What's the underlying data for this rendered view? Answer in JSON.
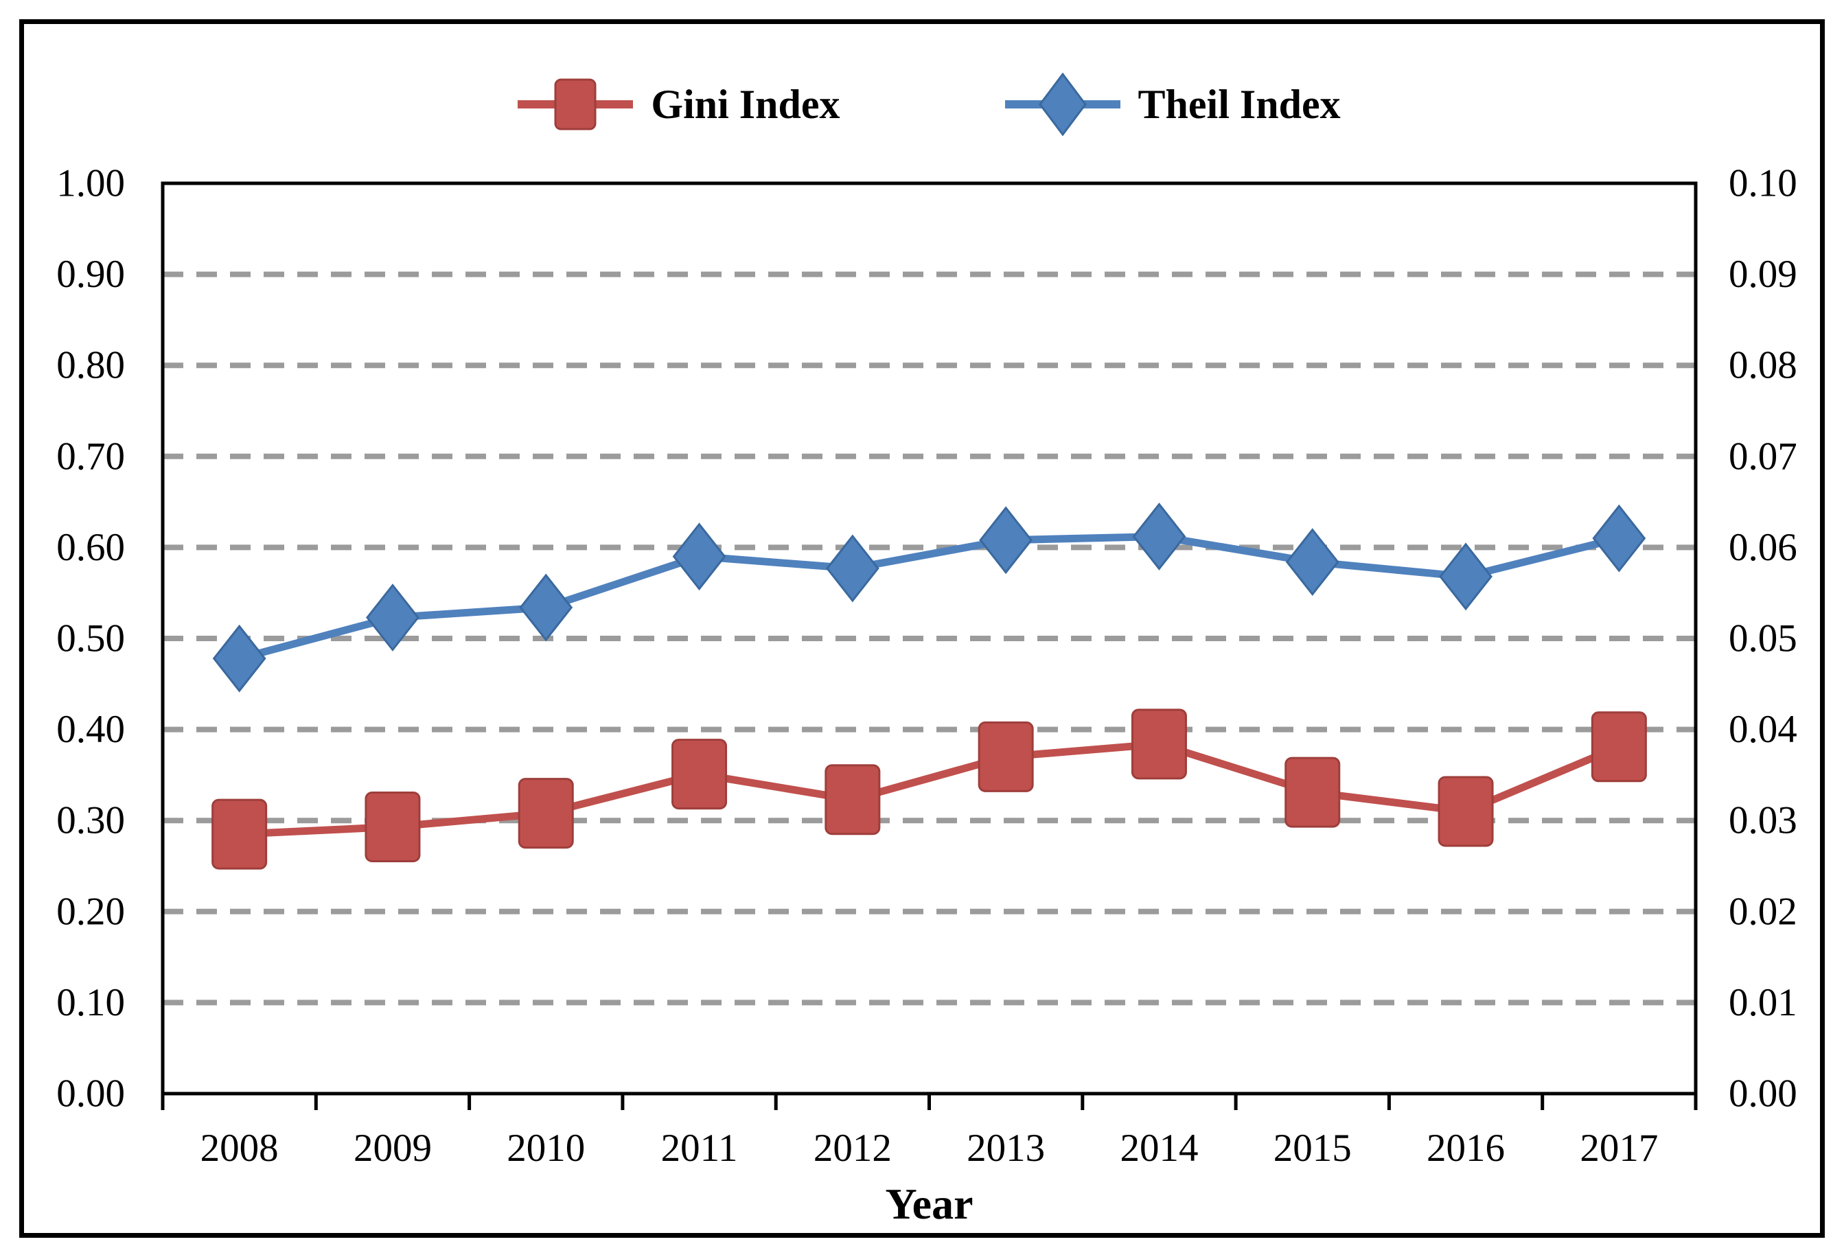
{
  "figure": {
    "background": "#ffffff",
    "border_color": "#000000"
  },
  "legend": {
    "position": "top-center",
    "items": [
      {
        "label": "Gini Index",
        "marker": "square",
        "color": "#C0504D",
        "marker_border": "#9E3E3B"
      },
      {
        "label": "Theil Index",
        "marker": "diamond",
        "color": "#4F81BD",
        "marker_border": "#3A699E"
      }
    ]
  },
  "chart_data": {
    "type": "line",
    "title": "",
    "xlabel": "Year",
    "categories": [
      "2008",
      "2009",
      "2010",
      "2011",
      "2012",
      "2013",
      "2014",
      "2015",
      "2016",
      "2017"
    ],
    "series": [
      {
        "name": "Gini Index",
        "axis": "left",
        "marker": "square",
        "color": "#C0504D",
        "marker_border": "#9E3E3B",
        "values": [
          0.285,
          0.293,
          0.308,
          0.351,
          0.323,
          0.37,
          0.384,
          0.331,
          0.31,
          0.381
        ]
      },
      {
        "name": "Theil Index",
        "axis": "right",
        "marker": "diamond",
        "color": "#4F81BD",
        "marker_border": "#3A699E",
        "values": [
          0.0478,
          0.0523,
          0.0534,
          0.059,
          0.0577,
          0.0608,
          0.0612,
          0.0584,
          0.0568,
          0.061
        ]
      }
    ],
    "left_axis": {
      "min": 0.0,
      "max": 1.0,
      "tick_step": 0.1,
      "ticks": [
        "0.00",
        "0.10",
        "0.20",
        "0.30",
        "0.40",
        "0.50",
        "0.60",
        "0.70",
        "0.80",
        "0.90",
        "1.00"
      ]
    },
    "right_axis": {
      "min": 0.0,
      "max": 0.1,
      "tick_step": 0.01,
      "ticks": [
        "0.00",
        "0.01",
        "0.02",
        "0.03",
        "0.04",
        "0.05",
        "0.06",
        "0.07",
        "0.08",
        "0.09",
        "0.10"
      ]
    },
    "grid": {
      "horizontal": true,
      "style": "dashed",
      "color": "#9B9B9B",
      "levels": [
        0.1,
        0.2,
        0.3,
        0.4,
        0.5,
        0.6,
        0.7,
        0.8,
        0.9
      ]
    }
  }
}
